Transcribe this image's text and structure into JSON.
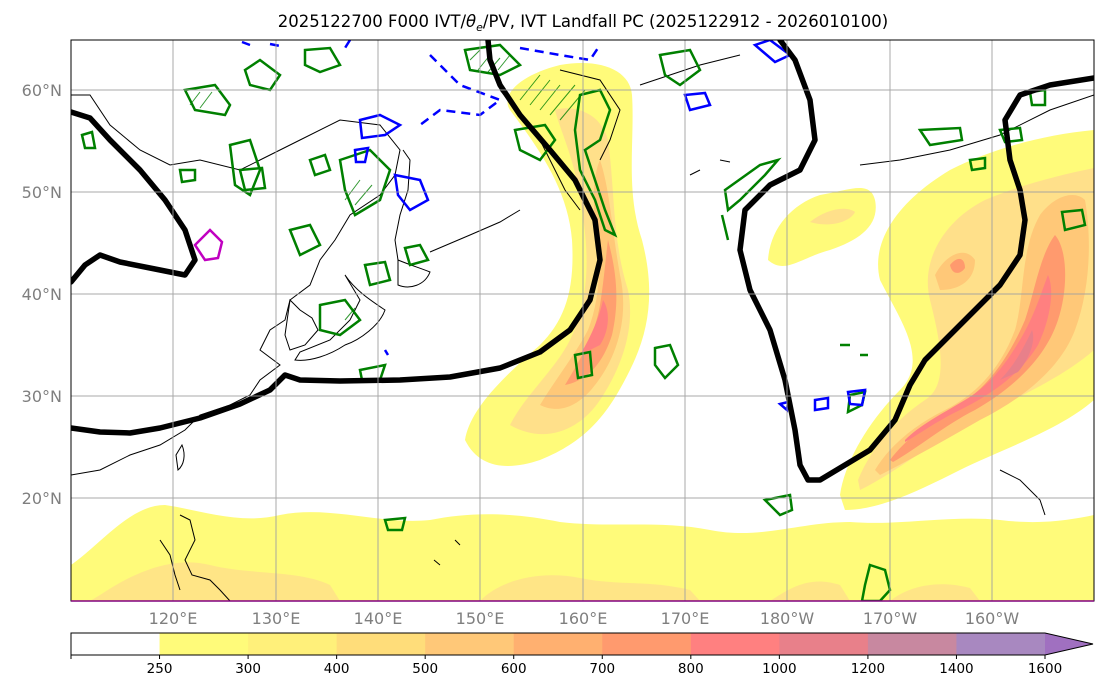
{
  "figure": {
    "title_main": "2025122700 F000 IVT/",
    "title_theta": "θ",
    "title_sub": "e",
    "title_rest": "/PV, IVT Landfall PC (2025122912 - 2026010100)"
  },
  "map": {
    "extent": {
      "lon_min": 110,
      "lon_max": 210,
      "lat_min": 10,
      "lat_max": 65
    },
    "lat_ticks": [
      {
        "value": 20,
        "label": "20°N"
      },
      {
        "value": 30,
        "label": "30°N"
      },
      {
        "value": 40,
        "label": "40°N"
      },
      {
        "value": 50,
        "label": "50°N"
      },
      {
        "value": 60,
        "label": "60°N"
      }
    ],
    "lon_ticks": [
      {
        "value": 120,
        "label": "120°E"
      },
      {
        "value": 130,
        "label": "130°E"
      },
      {
        "value": 140,
        "label": "140°E"
      },
      {
        "value": 150,
        "label": "150°E"
      },
      {
        "value": 160,
        "label": "160°E"
      },
      {
        "value": 170,
        "label": "170°E"
      },
      {
        "value": 180,
        "label": "180°W"
      },
      {
        "value": 190,
        "label": "170°W"
      },
      {
        "value": 200,
        "label": "160°W"
      }
    ],
    "colors": {
      "pv_positive": "#008000",
      "pv_negative": "#0000ff",
      "theta_e": "#c000c0",
      "landfall": "#000000",
      "grid": "#a0a0a0"
    }
  },
  "colorbar": {
    "levels": [
      250,
      300,
      400,
      500,
      600,
      700,
      800,
      1000,
      1200,
      1400,
      1600
    ],
    "labels": [
      "250",
      "300",
      "400",
      "500",
      "600",
      "700",
      "800",
      "1000",
      "1200",
      "1400",
      "1600"
    ],
    "colors": [
      "#ffffff",
      "#fffb7a",
      "#fff07a",
      "#ffdd7a",
      "#ffc878",
      "#ffb070",
      "#ff9a6e",
      "#ff8080",
      "#e8808a",
      "#c888a0",
      "#a888c0",
      "#a070c0"
    ]
  }
}
